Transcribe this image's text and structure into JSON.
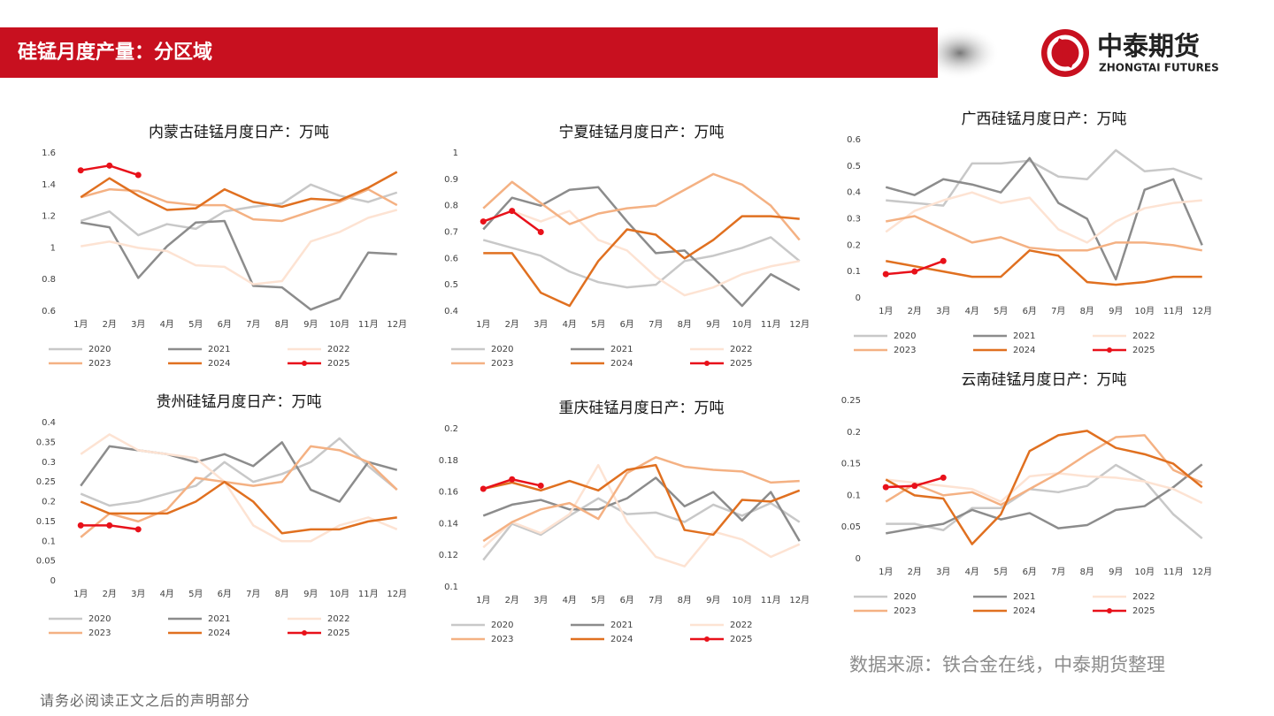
{
  "header": {
    "title": "硅锰月度产量：分区域"
  },
  "logo": {
    "name": "中泰期货",
    "english": "ZHONGTAI FUTURES"
  },
  "source": "数据来源：铁合金在线，中泰期货整理",
  "disclaimer": "请务必阅读正文之后的声明部分",
  "chart_data": [
    {
      "type": "line",
      "title": "内蒙古硅锰月度日产：万吨",
      "categories": [
        "1月",
        "2月",
        "3月",
        "4月",
        "5月",
        "6月",
        "7月",
        "8月",
        "9月",
        "10月",
        "11月",
        "12月"
      ],
      "ylim": [
        0.6,
        1.6
      ],
      "yticks": [
        0.6,
        0.8,
        1,
        1.2,
        1.4,
        1.6
      ],
      "grid": false,
      "legend": "bottom",
      "series": [
        {
          "name": "2020",
          "color": "#c8c8c8",
          "values": [
            1.17,
            1.23,
            1.08,
            1.15,
            1.12,
            1.23,
            1.26,
            1.28,
            1.4,
            1.33,
            1.29,
            1.35
          ]
        },
        {
          "name": "2021",
          "color": "#8c8c8c",
          "values": [
            1.16,
            1.13,
            0.81,
            1.01,
            1.16,
            1.17,
            0.76,
            0.75,
            0.61,
            0.68,
            0.97,
            0.96
          ]
        },
        {
          "name": "2022",
          "color": "#fde3d3",
          "values": [
            1.01,
            1.04,
            1.0,
            0.98,
            0.89,
            0.88,
            0.77,
            0.79,
            1.04,
            1.1,
            1.19,
            1.24
          ]
        },
        {
          "name": "2023",
          "color": "#f4b183",
          "values": [
            1.32,
            1.37,
            1.36,
            1.29,
            1.27,
            1.27,
            1.18,
            1.17,
            1.23,
            1.29,
            1.37,
            1.27
          ]
        },
        {
          "name": "2024",
          "color": "#e07020",
          "values": [
            1.32,
            1.44,
            1.33,
            1.24,
            1.25,
            1.37,
            1.29,
            1.26,
            1.31,
            1.3,
            1.38,
            1.48
          ]
        },
        {
          "name": "2025",
          "color": "#e8111a",
          "marker": true,
          "values": [
            1.49,
            1.52,
            1.46,
            null,
            null,
            null,
            null,
            null,
            null,
            null,
            null,
            null
          ]
        }
      ]
    },
    {
      "type": "line",
      "title": "宁夏硅锰月度日产：万吨",
      "categories": [
        "1月",
        "2月",
        "3月",
        "4月",
        "5月",
        "6月",
        "7月",
        "8月",
        "9月",
        "10月",
        "11月",
        "12月"
      ],
      "ylim": [
        0.4,
        1
      ],
      "yticks": [
        0.4,
        0.5,
        0.6,
        0.7,
        0.8,
        0.9,
        1
      ],
      "grid": false,
      "legend": "bottom",
      "series": [
        {
          "name": "2020",
          "color": "#c8c8c8",
          "values": [
            0.67,
            0.64,
            0.61,
            0.55,
            0.51,
            0.49,
            0.5,
            0.59,
            0.61,
            0.64,
            0.68,
            0.59
          ]
        },
        {
          "name": "2021",
          "color": "#8c8c8c",
          "values": [
            0.71,
            0.83,
            0.8,
            0.86,
            0.87,
            0.74,
            0.62,
            0.63,
            0.53,
            0.42,
            0.54,
            0.48
          ]
        },
        {
          "name": "2022",
          "color": "#fde3d3",
          "values": [
            0.74,
            0.78,
            0.74,
            0.78,
            0.67,
            0.63,
            0.53,
            0.46,
            0.49,
            0.54,
            0.57,
            0.59
          ]
        },
        {
          "name": "2023",
          "color": "#f4b183",
          "values": [
            0.79,
            0.89,
            0.81,
            0.73,
            0.77,
            0.79,
            0.8,
            0.86,
            0.92,
            0.88,
            0.8,
            0.67
          ]
        },
        {
          "name": "2024",
          "color": "#e07020",
          "values": [
            0.62,
            0.62,
            0.47,
            0.42,
            0.59,
            0.71,
            0.69,
            0.6,
            0.67,
            0.76,
            0.76,
            0.75
          ]
        },
        {
          "name": "2025",
          "color": "#e8111a",
          "marker": true,
          "values": [
            0.74,
            0.78,
            0.7,
            null,
            null,
            null,
            null,
            null,
            null,
            null,
            null,
            null
          ]
        }
      ]
    },
    {
      "type": "line",
      "title": "广西硅锰月度日产：万吨",
      "categories": [
        "1月",
        "2月",
        "3月",
        "4月",
        "5月",
        "6月",
        "7月",
        "8月",
        "9月",
        "10月",
        "11月",
        "12月"
      ],
      "ylim": [
        0,
        0.6
      ],
      "yticks": [
        0,
        0.1,
        0.2,
        0.3,
        0.4,
        0.5,
        0.6
      ],
      "grid": false,
      "legend": "bottom",
      "series": [
        {
          "name": "2020",
          "color": "#c8c8c8",
          "values": [
            0.37,
            0.36,
            0.35,
            0.51,
            0.51,
            0.52,
            0.46,
            0.45,
            0.56,
            0.48,
            0.49,
            0.45
          ]
        },
        {
          "name": "2021",
          "color": "#8c8c8c",
          "values": [
            0.42,
            0.39,
            0.45,
            0.43,
            0.4,
            0.53,
            0.36,
            0.3,
            0.07,
            0.41,
            0.45,
            0.2
          ]
        },
        {
          "name": "2022",
          "color": "#fde3d3",
          "values": [
            0.25,
            0.33,
            0.37,
            0.4,
            0.36,
            0.38,
            0.26,
            0.21,
            0.29,
            0.34,
            0.36,
            0.37
          ]
        },
        {
          "name": "2023",
          "color": "#f4b183",
          "values": [
            0.29,
            0.31,
            0.26,
            0.21,
            0.23,
            0.19,
            0.18,
            0.18,
            0.21,
            0.21,
            0.2,
            0.18
          ]
        },
        {
          "name": "2024",
          "color": "#e07020",
          "values": [
            0.14,
            0.12,
            0.1,
            0.08,
            0.08,
            0.18,
            0.16,
            0.06,
            0.05,
            0.06,
            0.08,
            0.08
          ]
        },
        {
          "name": "2025",
          "color": "#e8111a",
          "marker": true,
          "values": [
            0.09,
            0.1,
            0.14,
            null,
            null,
            null,
            null,
            null,
            null,
            null,
            null,
            null
          ]
        }
      ]
    },
    {
      "type": "line",
      "title": "贵州硅锰月度日产：万吨",
      "categories": [
        "1月",
        "2月",
        "3月",
        "4月",
        "5月",
        "6月",
        "7月",
        "8月",
        "9月",
        "10月",
        "11月",
        "12月"
      ],
      "ylim": [
        0,
        0.4
      ],
      "yticks": [
        0,
        0.05,
        0.1,
        0.15,
        0.2,
        0.25,
        0.3,
        0.35,
        0.4
      ],
      "grid": false,
      "legend": "bottom",
      "series": [
        {
          "name": "2020",
          "color": "#c8c8c8",
          "values": [
            0.22,
            0.19,
            0.2,
            0.22,
            0.24,
            0.3,
            0.25,
            0.27,
            0.3,
            0.36,
            0.29,
            0.23
          ]
        },
        {
          "name": "2021",
          "color": "#8c8c8c",
          "values": [
            0.24,
            0.34,
            0.33,
            0.32,
            0.3,
            0.32,
            0.29,
            0.35,
            0.23,
            0.2,
            0.3,
            0.28
          ]
        },
        {
          "name": "2022",
          "color": "#fde3d3",
          "values": [
            0.32,
            0.37,
            0.33,
            0.32,
            0.31,
            0.25,
            0.14,
            0.1,
            0.1,
            0.14,
            0.16,
            0.13
          ]
        },
        {
          "name": "2023",
          "color": "#f4b183",
          "values": [
            0.11,
            0.17,
            0.15,
            0.18,
            0.26,
            0.25,
            0.24,
            0.25,
            0.34,
            0.33,
            0.3,
            0.23
          ]
        },
        {
          "name": "2024",
          "color": "#e07020",
          "values": [
            0.2,
            0.17,
            0.17,
            0.17,
            0.2,
            0.25,
            0.2,
            0.12,
            0.13,
            0.13,
            0.15,
            0.16
          ]
        },
        {
          "name": "2025",
          "color": "#e8111a",
          "marker": true,
          "values": [
            0.14,
            0.14,
            0.13,
            null,
            null,
            null,
            null,
            null,
            null,
            null,
            null,
            null
          ]
        }
      ]
    },
    {
      "type": "line",
      "title": "重庆硅锰月度日产：万吨",
      "categories": [
        "1月",
        "2月",
        "3月",
        "4月",
        "5月",
        "6月",
        "7月",
        "8月",
        "9月",
        "10月",
        "11月",
        "12月"
      ],
      "ylim": [
        0.1,
        0.2
      ],
      "yticks": [
        0.1,
        0.12,
        0.14,
        0.16,
        0.18,
        0.2
      ],
      "grid": false,
      "legend": "bottom",
      "series": [
        {
          "name": "2020",
          "color": "#c8c8c8",
          "values": [
            0.117,
            0.14,
            0.133,
            0.145,
            0.156,
            0.146,
            0.147,
            0.141,
            0.152,
            0.145,
            0.153,
            0.141
          ]
        },
        {
          "name": "2021",
          "color": "#8c8c8c",
          "values": [
            0.145,
            0.152,
            0.155,
            0.149,
            0.149,
            0.156,
            0.169,
            0.151,
            0.16,
            0.142,
            0.16,
            0.129
          ]
        },
        {
          "name": "2022",
          "color": "#fde3d3",
          "values": [
            0.125,
            0.141,
            0.134,
            0.146,
            0.177,
            0.141,
            0.119,
            0.113,
            0.135,
            0.13,
            0.119,
            0.127
          ]
        },
        {
          "name": "2023",
          "color": "#f4b183",
          "values": [
            0.129,
            0.141,
            0.149,
            0.153,
            0.143,
            0.172,
            0.182,
            0.176,
            0.174,
            0.173,
            0.166,
            0.167
          ]
        },
        {
          "name": "2024",
          "color": "#e07020",
          "values": [
            0.162,
            0.166,
            0.161,
            0.167,
            0.161,
            0.174,
            0.177,
            0.136,
            0.133,
            0.155,
            0.154,
            0.161
          ]
        },
        {
          "name": "2025",
          "color": "#e8111a",
          "marker": true,
          "values": [
            0.162,
            0.168,
            0.164,
            null,
            null,
            null,
            null,
            null,
            null,
            null,
            null,
            null
          ]
        }
      ]
    },
    {
      "type": "line",
      "title": "云南硅锰月度日产：万吨",
      "categories": [
        "1月",
        "2月",
        "3月",
        "4月",
        "5月",
        "6月",
        "7月",
        "8月",
        "9月",
        "10月",
        "11月",
        "12月"
      ],
      "ylim": [
        0,
        0.25
      ],
      "yticks": [
        0,
        0.05,
        0.1,
        0.15,
        0.2,
        0.25
      ],
      "grid": false,
      "legend": "bottom",
      "series": [
        {
          "name": "2020",
          "color": "#c8c8c8",
          "values": [
            0.055,
            0.055,
            0.045,
            0.08,
            0.08,
            0.11,
            0.105,
            0.115,
            0.148,
            0.123,
            0.07,
            0.032
          ]
        },
        {
          "name": "2021",
          "color": "#8c8c8c",
          "values": [
            0.04,
            0.048,
            0.055,
            0.077,
            0.062,
            0.072,
            0.048,
            0.053,
            0.077,
            0.083,
            0.113,
            0.149
          ]
        },
        {
          "name": "2022",
          "color": "#fde3d3",
          "values": [
            0.125,
            0.12,
            0.115,
            0.11,
            0.09,
            0.13,
            0.135,
            0.13,
            0.128,
            0.122,
            0.11,
            0.088
          ]
        },
        {
          "name": "2023",
          "color": "#f4b183",
          "values": [
            0.09,
            0.118,
            0.1,
            0.105,
            0.085,
            0.11,
            0.135,
            0.165,
            0.192,
            0.195,
            0.14,
            0.12
          ]
        },
        {
          "name": "2024",
          "color": "#e07020",
          "values": [
            0.125,
            0.1,
            0.095,
            0.023,
            0.07,
            0.17,
            0.195,
            0.202,
            0.175,
            0.165,
            0.15,
            0.113
          ]
        },
        {
          "name": "2025",
          "color": "#e8111a",
          "marker": true,
          "values": [
            0.113,
            0.115,
            0.128,
            null,
            null,
            null,
            null,
            null,
            null,
            null,
            null,
            null
          ]
        }
      ]
    }
  ]
}
